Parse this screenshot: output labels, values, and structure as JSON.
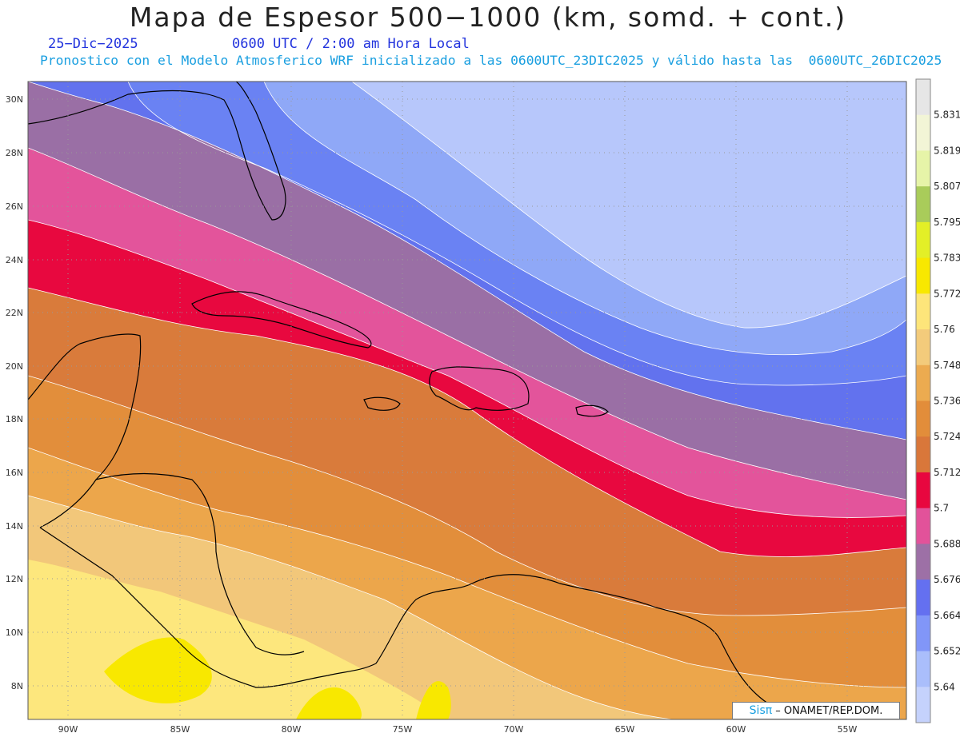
{
  "title": "Mapa de Espesor 500−1000 (km, somd. + cont.)",
  "subtitle": {
    "date": "25−Dic−2025",
    "time": "0600 UTC / 2:00 am Hora Local",
    "model_line": "Pronostico con el Modelo Atmosferico WRF inicializado a las 0600UTC_23DIC2025 y válido hasta las  0600UTC_26DIC2025"
  },
  "credit": {
    "logo": "Sisπ",
    "text": " – ONAMET/REP.DOM."
  },
  "axes": {
    "lon_labels": [
      "90W",
      "85W",
      "80W",
      "75W",
      "70W",
      "65W",
      "60W",
      "55W"
    ],
    "lat_labels": [
      "30N",
      "28N",
      "26N",
      "24N",
      "22N",
      "20N",
      "18N",
      "16N",
      "14N",
      "12N",
      "10N",
      "8N"
    ],
    "grid": "dotted"
  },
  "colorbar": {
    "labels": [
      "5.831",
      "5.819",
      "5.807",
      "5.795",
      "5.783",
      "5.772",
      "5.76",
      "5.748",
      "5.736",
      "5.724",
      "5.712",
      "5.7",
      "5.688",
      "5.676",
      "5.664",
      "5.652",
      "5.64"
    ],
    "colors_top_to_bottom": [
      "#e6e6e6",
      "#f2f5d6",
      "#e6f4a8",
      "#a9cc5a",
      "#e3ef27",
      "#f8e800",
      "#fde57a",
      "#f3cb7b",
      "#ecab50",
      "#e28d3a",
      "#d9773a",
      "#e8073f",
      "#e2529a",
      "#9d70a6",
      "#6470f0",
      "#8196f8",
      "#aabefb",
      "#c5d2fc"
    ]
  },
  "chart_data": {
    "type": "contour-map",
    "variable": "500−1000 hPa thickness (km)",
    "lon_range": [
      -92,
      -52.5
    ],
    "lat_range": [
      6.8,
      30.5
    ],
    "levels": [
      5.64,
      5.652,
      5.664,
      5.676,
      5.688,
      5.7,
      5.712,
      5.724,
      5.736,
      5.748,
      5.76,
      5.772,
      5.783,
      5.795,
      5.807,
      5.819,
      5.831
    ]
  }
}
